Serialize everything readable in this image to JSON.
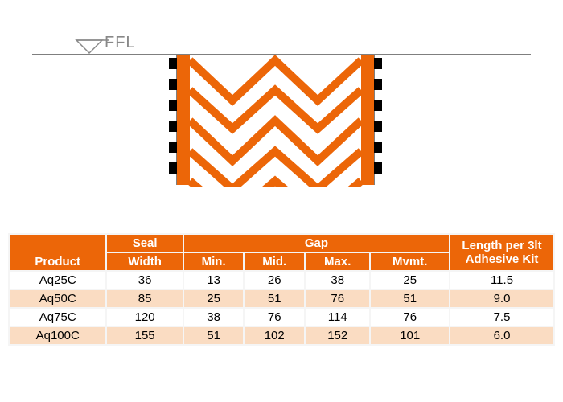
{
  "ffl_label": "FFL",
  "colors": {
    "header_bg": "#ec6608",
    "header_text": "#ffffff",
    "row_even_bg": "#fadcc2",
    "row_odd_bg": "#ffffff",
    "border": "#f5f5f5",
    "diagram_orange": "#ec6608",
    "diagram_black": "#000000",
    "ffl_text": "#888888",
    "line": "#555555"
  },
  "table": {
    "columns": {
      "product": "Product",
      "seal_width": "Seal Width",
      "gap": "Gap",
      "gap_min": "Min.",
      "gap_mid": "Mid.",
      "gap_max": "Max.",
      "gap_mvmt": "Mvmt.",
      "length": "Length per 3lt Adhesive Kit"
    },
    "rows": [
      {
        "product": "Aq25C",
        "seal_width": "36",
        "min": "13",
        "mid": "26",
        "max": "38",
        "mvmt": "25",
        "length": "11.5"
      },
      {
        "product": "Aq50C",
        "seal_width": "85",
        "min": "25",
        "mid": "51",
        "max": "76",
        "mvmt": "51",
        "length": "9.0"
      },
      {
        "product": "Aq75C",
        "seal_width": "120",
        "min": "38",
        "mid": "76",
        "max": "114",
        "mvmt": "76",
        "length": "7.5"
      },
      {
        "product": "Aq100C",
        "seal_width": "155",
        "min": "51",
        "mid": "102",
        "max": "152",
        "mvmt": "101",
        "length": "6.0"
      }
    ]
  }
}
